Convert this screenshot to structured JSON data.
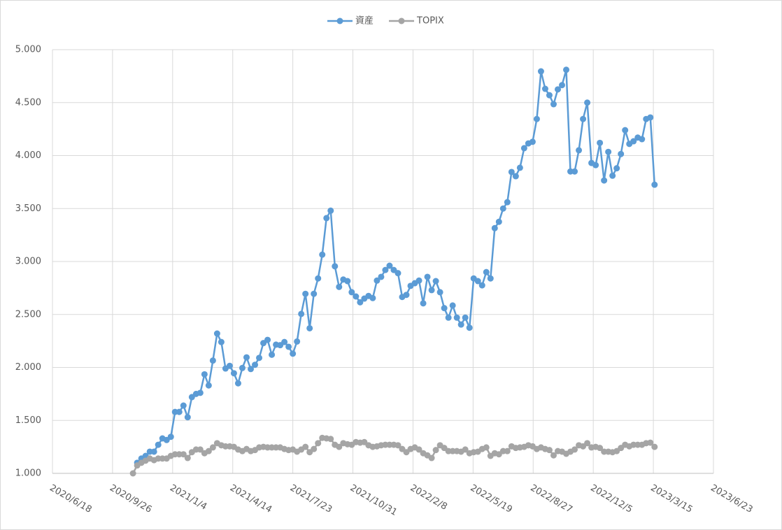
{
  "chart_data": {
    "type": "line",
    "x": [
      "2020/10/30",
      "2020/11/6",
      "2020/11/13",
      "2020/11/20",
      "2020/11/27",
      "2020/12/4",
      "2020/12/11",
      "2020/12/18",
      "2020/12/25",
      "2021/1/1",
      "2021/1/8",
      "2021/1/15",
      "2021/1/22",
      "2021/1/29",
      "2021/2/5",
      "2021/2/12",
      "2021/2/19",
      "2021/2/26",
      "2021/3/5",
      "2021/3/12",
      "2021/3/19",
      "2021/3/26",
      "2021/4/2",
      "2021/4/9",
      "2021/4/16",
      "2021/4/23",
      "2021/4/30",
      "2021/5/7",
      "2021/5/14",
      "2021/5/21",
      "2021/5/28",
      "2021/6/4",
      "2021/6/11",
      "2021/6/18",
      "2021/6/25",
      "2021/7/2",
      "2021/7/9",
      "2021/7/16",
      "2021/7/23",
      "2021/7/30",
      "2021/8/6",
      "2021/8/13",
      "2021/8/20",
      "2021/8/27",
      "2021/9/3",
      "2021/9/10",
      "2021/9/17",
      "2021/9/24",
      "2021/10/1",
      "2021/10/8",
      "2021/10/15",
      "2021/10/22",
      "2021/10/29",
      "2021/11/5",
      "2021/11/12",
      "2021/11/19",
      "2021/11/26",
      "2021/12/3",
      "2021/12/10",
      "2021/12/17",
      "2021/12/24",
      "2021/12/31",
      "2022/1/7",
      "2022/1/14",
      "2022/1/21",
      "2022/1/28",
      "2022/2/4",
      "2022/2/11",
      "2022/2/18",
      "2022/2/25",
      "2022/3/4",
      "2022/3/11",
      "2022/3/18",
      "2022/3/25",
      "2022/4/1",
      "2022/4/8",
      "2022/4/15",
      "2022/4/22",
      "2022/4/29",
      "2022/5/6",
      "2022/5/13",
      "2022/5/20",
      "2022/5/27",
      "2022/6/3",
      "2022/6/10",
      "2022/6/17",
      "2022/6/24",
      "2022/7/1",
      "2022/7/8",
      "2022/7/15",
      "2022/7/22",
      "2022/7/29",
      "2022/8/5",
      "2022/8/12",
      "2022/8/19",
      "2022/8/26",
      "2022/9/2",
      "2022/9/9",
      "2022/9/16",
      "2022/9/23",
      "2022/9/30",
      "2022/10/7",
      "2022/10/14",
      "2022/10/21",
      "2022/10/28",
      "2022/11/4",
      "2022/11/11",
      "2022/11/18",
      "2022/11/25",
      "2022/12/2",
      "2022/12/9",
      "2022/12/16",
      "2022/12/23",
      "2022/12/30",
      "2023/1/6",
      "2023/1/13",
      "2023/1/20",
      "2023/1/27",
      "2023/2/3",
      "2023/2/10",
      "2023/2/17",
      "2023/2/24",
      "2023/3/3",
      "2023/3/10",
      "2023/3/17"
    ],
    "series": [
      {
        "name": "資産",
        "color": "#5b9bd5",
        "values": [
          null,
          1100,
          1140,
          1165,
          1205,
          1205,
          1270,
          1330,
          1315,
          1345,
          1580,
          1580,
          1640,
          1530,
          1720,
          1750,
          1760,
          1935,
          1830,
          2065,
          2320,
          2240,
          1990,
          2015,
          1945,
          1850,
          1995,
          2095,
          1985,
          2025,
          2090,
          2230,
          2260,
          2120,
          2215,
          2210,
          2240,
          2195,
          2130,
          2245,
          2505,
          2695,
          2370,
          2695,
          2840,
          3065,
          3410,
          3480,
          2955,
          2760,
          2830,
          2815,
          2710,
          2670,
          2615,
          2650,
          2675,
          2655,
          2820,
          2855,
          2920,
          2960,
          2920,
          2890,
          2665,
          2685,
          2770,
          2795,
          2820,
          2605,
          2855,
          2730,
          2815,
          2710,
          2560,
          2470,
          2585,
          2470,
          2405,
          2470,
          2375,
          2840,
          2815,
          2775,
          2900,
          2840,
          3315,
          3375,
          3500,
          3560,
          3845,
          3805,
          3885,
          4070,
          4115,
          4130,
          4345,
          4795,
          4630,
          4570,
          4485,
          4625,
          4665,
          4810,
          3850,
          3850,
          4050,
          4345,
          4500,
          3930,
          3910,
          4120,
          3765,
          4035,
          3810,
          3880,
          4015,
          4240,
          4110,
          4135,
          4170,
          4155,
          4345,
          4360,
          3725
        ]
      },
      {
        "name": "TOPIX",
        "color": "#a5a5a5",
        "values": [
          1000,
          1075,
          1100,
          1120,
          1140,
          1125,
          1140,
          1140,
          1140,
          1165,
          1180,
          1180,
          1180,
          1145,
          1200,
          1225,
          1225,
          1190,
          1210,
          1245,
          1285,
          1265,
          1255,
          1255,
          1250,
          1225,
          1210,
          1230,
          1210,
          1220,
          1245,
          1250,
          1245,
          1245,
          1245,
          1245,
          1230,
          1220,
          1225,
          1205,
          1225,
          1250,
          1200,
          1230,
          1285,
          1335,
          1330,
          1325,
          1270,
          1250,
          1285,
          1275,
          1270,
          1295,
          1290,
          1295,
          1265,
          1250,
          1255,
          1265,
          1270,
          1270,
          1270,
          1265,
          1230,
          1200,
          1230,
          1245,
          1225,
          1190,
          1170,
          1145,
          1220,
          1265,
          1240,
          1210,
          1210,
          1210,
          1205,
          1225,
          1190,
          1200,
          1205,
          1230,
          1245,
          1165,
          1190,
          1180,
          1210,
          1210,
          1255,
          1240,
          1245,
          1250,
          1265,
          1255,
          1230,
          1245,
          1230,
          1220,
          1170,
          1210,
          1205,
          1185,
          1205,
          1225,
          1265,
          1255,
          1285,
          1245,
          1250,
          1240,
          1205,
          1205,
          1200,
          1210,
          1240,
          1270,
          1255,
          1270,
          1270,
          1270,
          1285,
          1290,
          1250
        ]
      }
    ],
    "xlim": [
      "2020/6/18",
      "2023/6/23"
    ],
    "xticks": [
      "2020/6/18",
      "2020/9/26",
      "2021/1/4",
      "2021/4/14",
      "2021/7/23",
      "2021/10/31",
      "2022/2/8",
      "2022/5/19",
      "2022/8/27",
      "2022/12/5",
      "2023/3/15",
      "2023/6/23"
    ],
    "ylim": [
      1000,
      5000
    ],
    "yticks": [
      {
        "value": 1000,
        "label": "1.000"
      },
      {
        "value": 1500,
        "label": "1.500"
      },
      {
        "value": 2000,
        "label": "2.000"
      },
      {
        "value": 2500,
        "label": "2.500"
      },
      {
        "value": 3000,
        "label": "3.000"
      },
      {
        "value": 3500,
        "label": "3.500"
      },
      {
        "value": 4000,
        "label": "4.000"
      },
      {
        "value": 4500,
        "label": "4.500"
      },
      {
        "value": 5000,
        "label": "5.000"
      }
    ],
    "grid": true,
    "legend": "top"
  }
}
